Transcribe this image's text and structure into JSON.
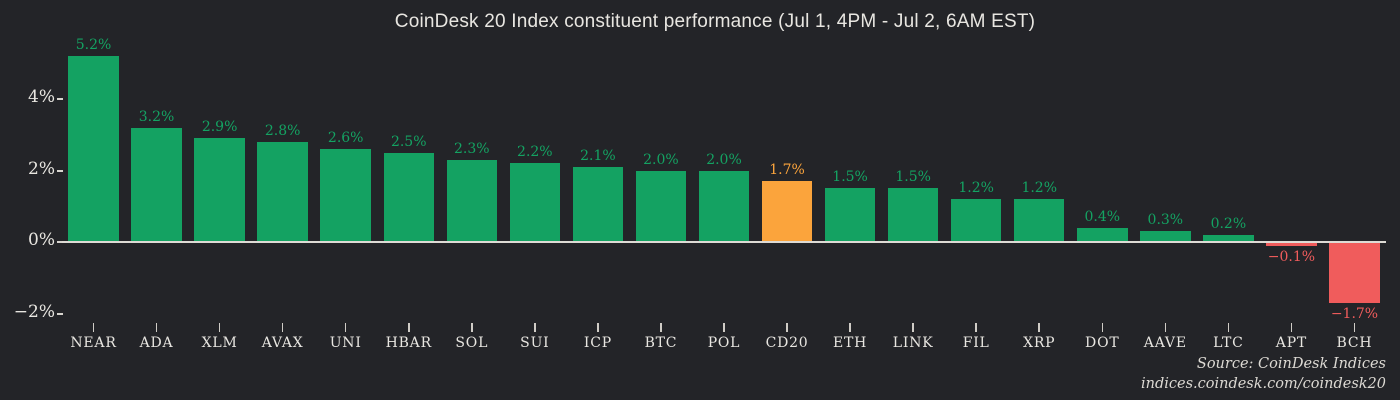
{
  "title": "CoinDesk 20 Index constituent performance (Jul 1, 4PM - Jul 2, 6AM EST)",
  "source": {
    "line1": "Source: CoinDesk Indices",
    "line2": "indices.coindesk.com/coindesk20"
  },
  "colors": {
    "background": "#232428",
    "positive": "#14a262",
    "highlight": "#fba43c",
    "negative": "#f05c5c",
    "axis_text": "#e8e6e1",
    "baseline": "#dedbd5"
  },
  "chart_data": {
    "type": "bar",
    "title": "CoinDesk 20 Index constituent performance (Jul 1, 4PM - Jul 2, 6AM EST)",
    "categories": [
      "NEAR",
      "ADA",
      "XLM",
      "AVAX",
      "UNI",
      "HBAR",
      "SOL",
      "SUI",
      "ICP",
      "BTC",
      "POL",
      "CD20",
      "ETH",
      "LINK",
      "FIL",
      "XRP",
      "DOT",
      "AAVE",
      "LTC",
      "APT",
      "BCH"
    ],
    "values": [
      5.2,
      3.2,
      2.9,
      2.8,
      2.6,
      2.5,
      2.3,
      2.2,
      2.1,
      2.0,
      2.0,
      1.7,
      1.5,
      1.5,
      1.2,
      1.2,
      0.4,
      0.3,
      0.2,
      -0.1,
      -1.7
    ],
    "value_labels": [
      "5.2%",
      "3.2%",
      "2.9%",
      "2.8%",
      "2.6%",
      "2.5%",
      "2.3%",
      "2.2%",
      "2.1%",
      "2.0%",
      "2.0%",
      "1.7%",
      "1.5%",
      "1.5%",
      "1.2%",
      "1.2%",
      "0.4%",
      "0.3%",
      "0.2%",
      "−0.1%",
      "−1.7%"
    ],
    "highlight_category": "CD20",
    "xlabel": "",
    "ylabel": "",
    "ylim": [
      -2.6,
      5.6
    ],
    "grid": false,
    "legend": null,
    "yticks": [
      {
        "label": "4%",
        "value": 4
      },
      {
        "label": "2%",
        "value": 2
      },
      {
        "label": "0%",
        "value": 0
      },
      {
        "label": "−2%",
        "value": -2
      }
    ]
  }
}
